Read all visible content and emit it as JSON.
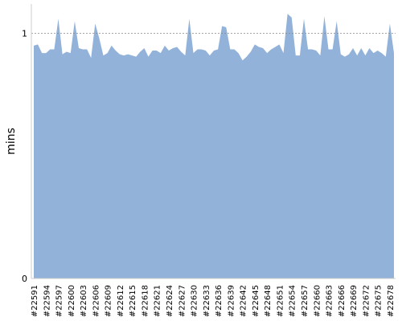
{
  "chart_data": {
    "type": "area",
    "ylabel": "mins",
    "color": "#92b2da",
    "categories": [
      "#22591",
      null,
      null,
      "#22594",
      null,
      null,
      "#22597",
      null,
      null,
      "#22600",
      null,
      null,
      "#22603",
      null,
      null,
      "#22606",
      null,
      null,
      "#22609",
      null,
      null,
      "#22612",
      null,
      null,
      "#22615",
      null,
      null,
      "#22618",
      null,
      null,
      "#22621",
      null,
      null,
      "#22624",
      null,
      null,
      "#22627",
      null,
      null,
      "#22630",
      null,
      null,
      "#22633",
      null,
      null,
      "#22636",
      null,
      null,
      "#22639",
      null,
      null,
      "#22642",
      null,
      null,
      "#22645",
      null,
      null,
      "#22648",
      null,
      null,
      "#22651",
      null,
      null,
      "#22654",
      null,
      null,
      "#22657",
      null,
      null,
      "#22660",
      null,
      null,
      "#22663",
      null,
      null,
      "#22666",
      null,
      null,
      "#22669",
      null,
      null,
      "#22672",
      null,
      null,
      "#22675",
      null,
      null,
      "#22678",
      null
    ],
    "values": [
      0.95,
      0.955,
      0.92,
      0.92,
      0.935,
      0.935,
      1.06,
      0.915,
      0.925,
      0.92,
      1.05,
      0.94,
      0.935,
      0.935,
      0.9,
      1.04,
      0.98,
      0.91,
      0.92,
      0.95,
      0.93,
      0.915,
      0.91,
      0.915,
      0.91,
      0.905,
      0.925,
      0.94,
      0.905,
      0.93,
      0.93,
      0.92,
      0.95,
      0.93,
      0.94,
      0.945,
      0.925,
      0.91,
      1.06,
      0.92,
      0.935,
      0.935,
      0.93,
      0.91,
      0.93,
      0.935,
      1.03,
      1.025,
      0.935,
      0.935,
      0.92,
      0.89,
      0.905,
      0.925,
      0.955,
      0.945,
      0.94,
      0.92,
      0.935,
      0.945,
      0.955,
      0.92,
      1.08,
      1.065,
      0.91,
      0.91,
      1.06,
      0.935,
      0.935,
      0.93,
      0.91,
      1.07,
      0.935,
      0.935,
      1.05,
      0.915,
      0.905,
      0.915,
      0.94,
      0.91,
      0.94,
      0.91,
      0.94,
      0.92,
      0.93,
      0.92,
      0.905,
      1.04,
      0.92
    ],
    "ylim": [
      0,
      1.12
    ],
    "yticks": [
      0,
      1
    ],
    "grid": true
  }
}
